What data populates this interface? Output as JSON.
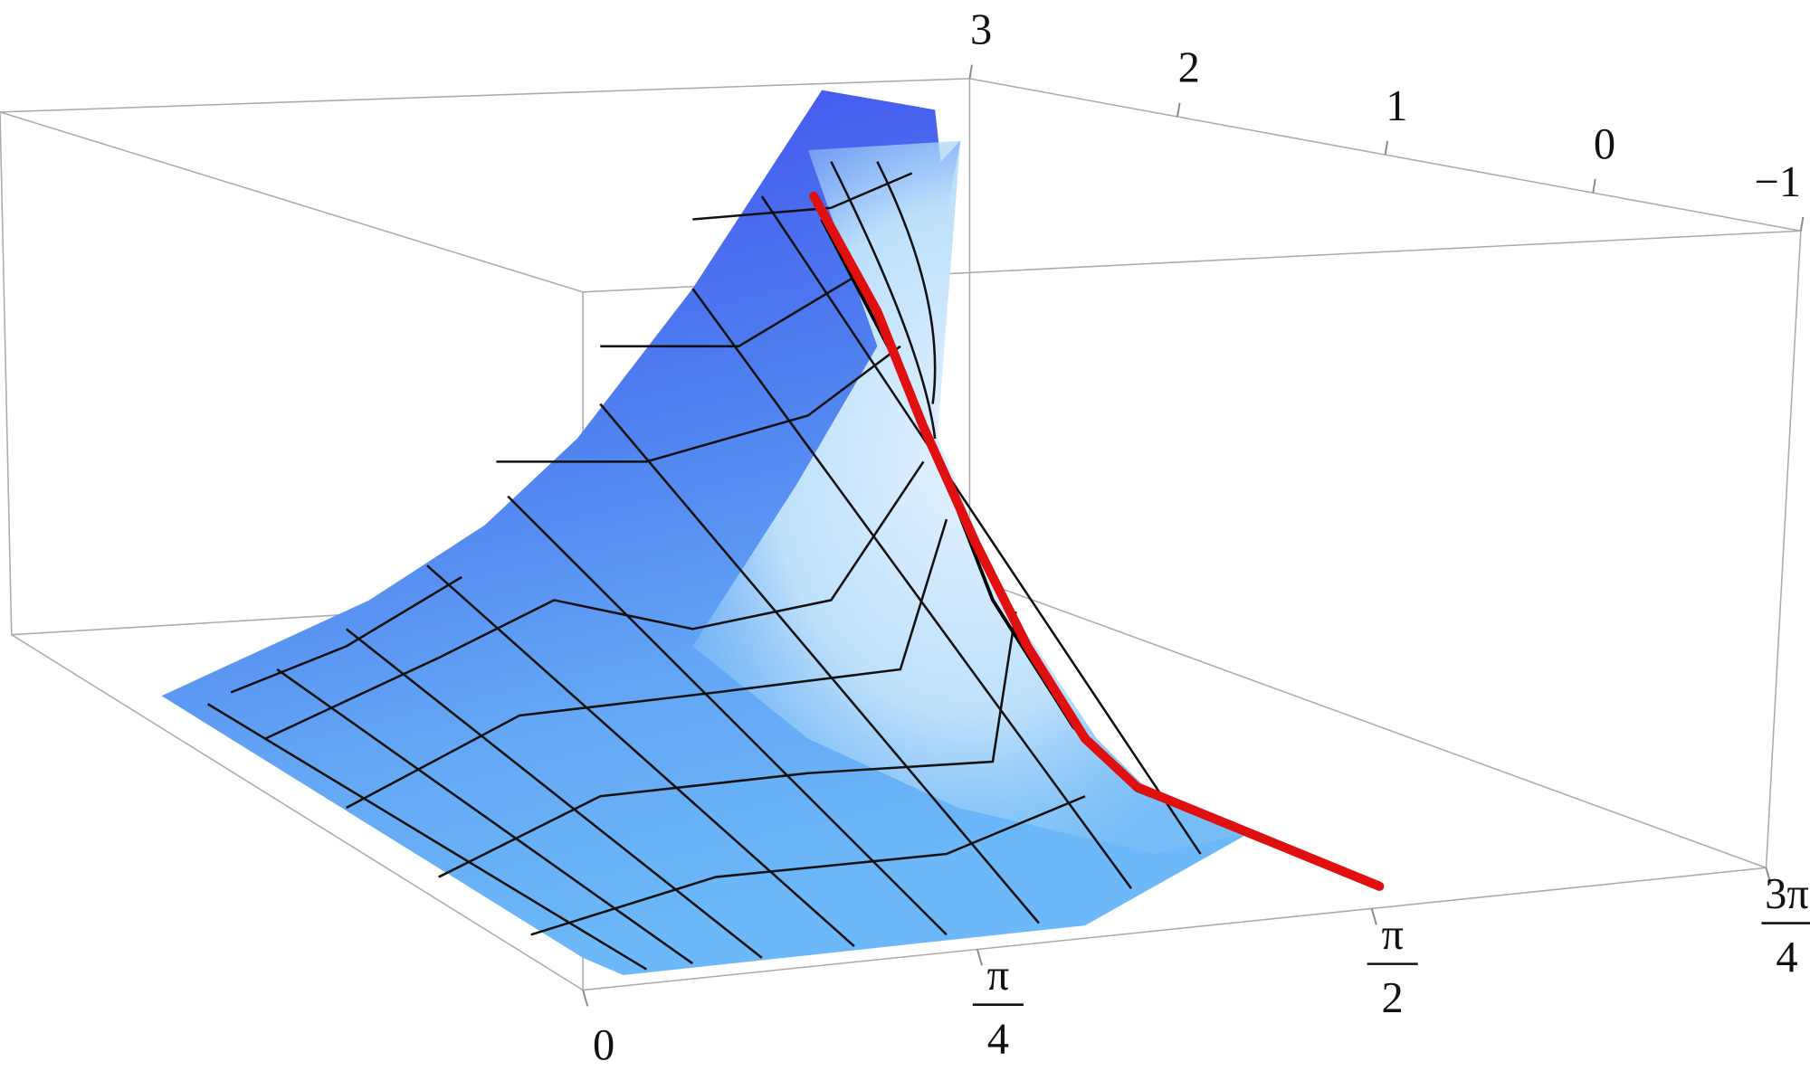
{
  "chart_data": {
    "type": "surface3d",
    "xlim": [
      0,
      2.356194
    ],
    "xticks": [
      0,
      {
        "value": 0.785398,
        "label": "π/4"
      },
      {
        "value": 1.570796,
        "label": "π/2"
      },
      {
        "value": 2.356194,
        "label": "3π/4"
      }
    ],
    "ylim": [
      -1,
      3
    ],
    "yticks": [
      3,
      2,
      1,
      0,
      {
        "value": -1,
        "label": "−1"
      }
    ],
    "curve_color": "#e01010"
  }
}
